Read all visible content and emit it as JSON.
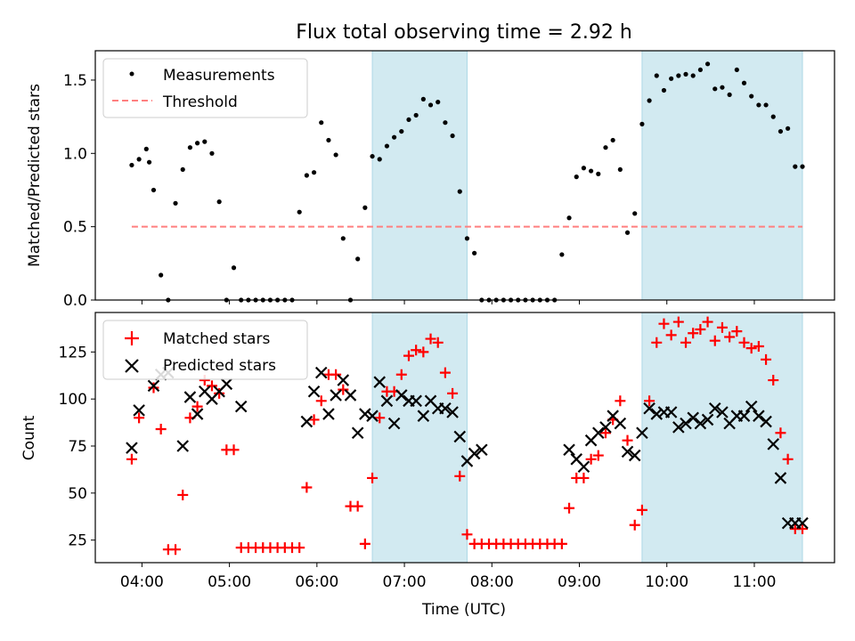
{
  "title": "Flux total observing time = 2.92 h",
  "chart_data": [
    {
      "type": "scatter",
      "title": "Flux total observing time = 2.92 h",
      "ylabel": "Matched/Predicted stars",
      "xlabel": "",
      "ylim": [
        0,
        1.7
      ],
      "yticks": [
        0.0,
        0.5,
        1.0,
        1.5
      ],
      "ytick_labels": [
        "0.0",
        "0.5",
        "1.0",
        "1.5"
      ],
      "legend": {
        "placement": "top-left",
        "entries": [
          "Measurements",
          "Threshold"
        ]
      },
      "threshold": {
        "name": "Threshold",
        "value": 0.5,
        "x_start": "03:53",
        "x_end": "11:33",
        "color": "#ff7f7f",
        "style": "dashed"
      },
      "series": [
        {
          "name": "Measurements",
          "color": "#000000",
          "marker": "dot",
          "x": [
            "03:53",
            "03:58",
            "04:03",
            "04:05",
            "04:08",
            "04:13",
            "04:18",
            "04:23",
            "04:28",
            "04:33",
            "04:38",
            "04:43",
            "04:48",
            "04:53",
            "04:58",
            "05:03",
            "05:08",
            "05:13",
            "05:18",
            "05:23",
            "05:28",
            "05:33",
            "05:38",
            "05:43",
            "05:48",
            "05:53",
            "05:58",
            "06:03",
            "06:08",
            "06:13",
            "06:18",
            "06:23",
            "06:28",
            "06:33",
            "06:38",
            "06:43",
            "06:48",
            "06:53",
            "06:58",
            "07:03",
            "07:08",
            "07:13",
            "07:18",
            "07:23",
            "07:28",
            "07:33",
            "07:38",
            "07:43",
            "07:48",
            "07:53",
            "07:58",
            "08:03",
            "08:08",
            "08:13",
            "08:18",
            "08:23",
            "08:28",
            "08:33",
            "08:38",
            "08:43",
            "08:48",
            "08:53",
            "08:58",
            "09:03",
            "09:08",
            "09:13",
            "09:18",
            "09:23",
            "09:28",
            "09:33",
            "09:38",
            "09:43",
            "09:48",
            "09:53",
            "09:58",
            "10:03",
            "10:08",
            "10:13",
            "10:18",
            "10:23",
            "10:28",
            "10:33",
            "10:38",
            "10:43",
            "10:48",
            "10:53",
            "10:58",
            "11:03",
            "11:08",
            "11:13",
            "11:18",
            "11:23",
            "11:28",
            "11:33"
          ],
          "y": [
            0.92,
            0.96,
            1.03,
            0.94,
            0.75,
            0.17,
            0.0,
            0.66,
            0.89,
            1.04,
            1.07,
            1.08,
            1.0,
            0.67,
            0.0,
            0.22,
            0.0,
            0.0,
            0.0,
            0.0,
            0.0,
            0.0,
            0.0,
            0.0,
            0.6,
            0.85,
            0.87,
            1.21,
            1.09,
            0.99,
            0.42,
            0.0,
            0.28,
            0.63,
            0.98,
            0.96,
            1.05,
            1.11,
            1.15,
            1.23,
            1.26,
            1.37,
            1.33,
            1.35,
            1.21,
            1.12,
            0.74,
            0.42,
            0.32,
            0.0,
            0.0,
            0.0,
            0.0,
            0.0,
            0.0,
            0.0,
            0.0,
            0.0,
            0.0,
            0.0,
            0.31,
            0.56,
            0.84,
            0.9,
            0.88,
            0.86,
            1.04,
            1.09,
            0.89,
            0.46,
            0.59,
            1.2,
            1.36,
            1.53,
            1.43,
            1.51,
            1.53,
            1.54,
            1.53,
            1.57,
            1.61,
            1.44,
            1.45,
            1.4,
            1.57,
            1.48,
            1.39,
            1.33,
            1.33,
            1.25,
            1.15,
            1.17,
            0.91,
            0.91
          ]
        }
      ],
      "shaded_regions": [
        {
          "x_start": "06:38",
          "x_end": "07:43",
          "color": "#add8e6"
        },
        {
          "x_start": "09:43",
          "x_end": "11:33",
          "color": "#add8e6"
        }
      ]
    },
    {
      "type": "scatter",
      "xlabel": "Time (UTC)",
      "ylabel": "Count",
      "ylim": [
        13,
        146
      ],
      "yticks": [
        25,
        50,
        75,
        100,
        125
      ],
      "ytick_labels": [
        "25",
        "50",
        "75",
        "100",
        "125"
      ],
      "xlim": [
        "03:28",
        "11:55"
      ],
      "xticks": [
        "04:00",
        "05:00",
        "06:00",
        "07:00",
        "08:00",
        "09:00",
        "10:00",
        "11:00"
      ],
      "legend": {
        "placement": "top-left",
        "entries": [
          "Matched stars",
          "Predicted stars"
        ]
      },
      "series": [
        {
          "name": "Matched stars",
          "color": "#ff0000",
          "marker": "plus",
          "x": [
            "03:53",
            "03:58",
            "04:08",
            "04:13",
            "04:18",
            "04:23",
            "04:28",
            "04:33",
            "04:38",
            "04:43",
            "04:48",
            "04:53",
            "04:58",
            "05:03",
            "05:08",
            "05:13",
            "05:18",
            "05:23",
            "05:28",
            "05:33",
            "05:38",
            "05:43",
            "05:48",
            "05:53",
            "05:58",
            "06:03",
            "06:08",
            "06:13",
            "06:18",
            "06:23",
            "06:28",
            "06:33",
            "06:38",
            "06:43",
            "06:48",
            "06:53",
            "06:58",
            "07:03",
            "07:08",
            "07:13",
            "07:18",
            "07:23",
            "07:28",
            "07:33",
            "07:38",
            "07:43",
            "07:48",
            "07:53",
            "07:58",
            "08:03",
            "08:08",
            "08:13",
            "08:18",
            "08:23",
            "08:28",
            "08:33",
            "08:38",
            "08:43",
            "08:48",
            "08:53",
            "08:58",
            "09:03",
            "09:08",
            "09:13",
            "09:18",
            "09:23",
            "09:28",
            "09:33",
            "09:38",
            "09:43",
            "09:48",
            "09:53",
            "09:58",
            "10:03",
            "10:08",
            "10:13",
            "10:18",
            "10:23",
            "10:28",
            "10:33",
            "10:38",
            "10:43",
            "10:48",
            "10:53",
            "10:58",
            "11:03",
            "11:08",
            "11:13",
            "11:18",
            "11:23",
            "11:28",
            "11:33"
          ],
          "y": [
            68,
            90,
            106,
            84,
            20,
            20,
            49,
            90,
            96,
            110,
            107,
            103,
            73,
            73,
            21,
            21,
            21,
            21,
            21,
            21,
            21,
            21,
            21,
            53,
            89,
            99,
            113,
            113,
            105,
            43,
            43,
            23,
            58,
            90,
            104,
            104,
            113,
            123,
            126,
            125,
            132,
            130,
            114,
            103,
            59,
            28,
            23,
            23,
            23,
            23,
            23,
            23,
            23,
            23,
            23,
            23,
            23,
            23,
            23,
            42,
            58,
            58,
            68,
            70,
            82,
            89,
            99,
            78,
            33,
            41,
            99,
            130,
            140,
            134,
            141,
            130,
            135,
            137,
            141,
            131,
            138,
            133,
            136,
            130,
            127,
            128,
            121,
            110,
            82,
            68,
            31,
            31
          ]
        },
        {
          "name": "Predicted stars",
          "color": "#000000",
          "marker": "x",
          "x": [
            "03:53",
            "03:58",
            "04:08",
            "04:13",
            "04:18",
            "04:28",
            "04:33",
            "04:38",
            "04:43",
            "04:48",
            "04:53",
            "04:58",
            "05:08",
            "05:53",
            "05:58",
            "06:03",
            "06:08",
            "06:13",
            "06:18",
            "06:23",
            "06:28",
            "06:33",
            "06:38",
            "06:43",
            "06:48",
            "06:53",
            "06:58",
            "07:03",
            "07:08",
            "07:13",
            "07:18",
            "07:23",
            "07:28",
            "07:33",
            "07:38",
            "07:43",
            "07:48",
            "07:53",
            "08:53",
            "08:58",
            "09:03",
            "09:08",
            "09:13",
            "09:18",
            "09:23",
            "09:28",
            "09:33",
            "09:38",
            "09:43",
            "09:48",
            "09:53",
            "09:58",
            "10:03",
            "10:08",
            "10:13",
            "10:18",
            "10:23",
            "10:28",
            "10:33",
            "10:38",
            "10:43",
            "10:48",
            "10:53",
            "10:58",
            "11:03",
            "11:08",
            "11:13",
            "11:18",
            "11:23",
            "11:28",
            "11:33"
          ],
          "y": [
            74,
            94,
            107,
            113,
            114,
            75,
            101,
            92,
            104,
            100,
            104,
            108,
            96,
            88,
            104,
            114,
            92,
            102,
            110,
            102,
            82,
            92,
            91,
            109,
            99,
            87,
            102,
            99,
            99,
            91,
            99,
            95,
            95,
            93,
            80,
            67,
            71,
            73,
            73,
            68,
            64,
            78,
            82,
            85,
            91,
            87,
            72,
            70,
            82,
            95,
            92,
            93,
            93,
            85,
            87,
            90,
            87,
            89,
            95,
            93,
            87,
            91,
            91,
            96,
            91,
            88,
            76,
            58,
            34,
            34,
            34
          ]
        }
      ],
      "shaded_regions": [
        {
          "x_start": "06:38",
          "x_end": "07:43",
          "color": "#add8e6"
        },
        {
          "x_start": "09:43",
          "x_end": "11:33",
          "color": "#add8e6"
        }
      ]
    }
  ]
}
